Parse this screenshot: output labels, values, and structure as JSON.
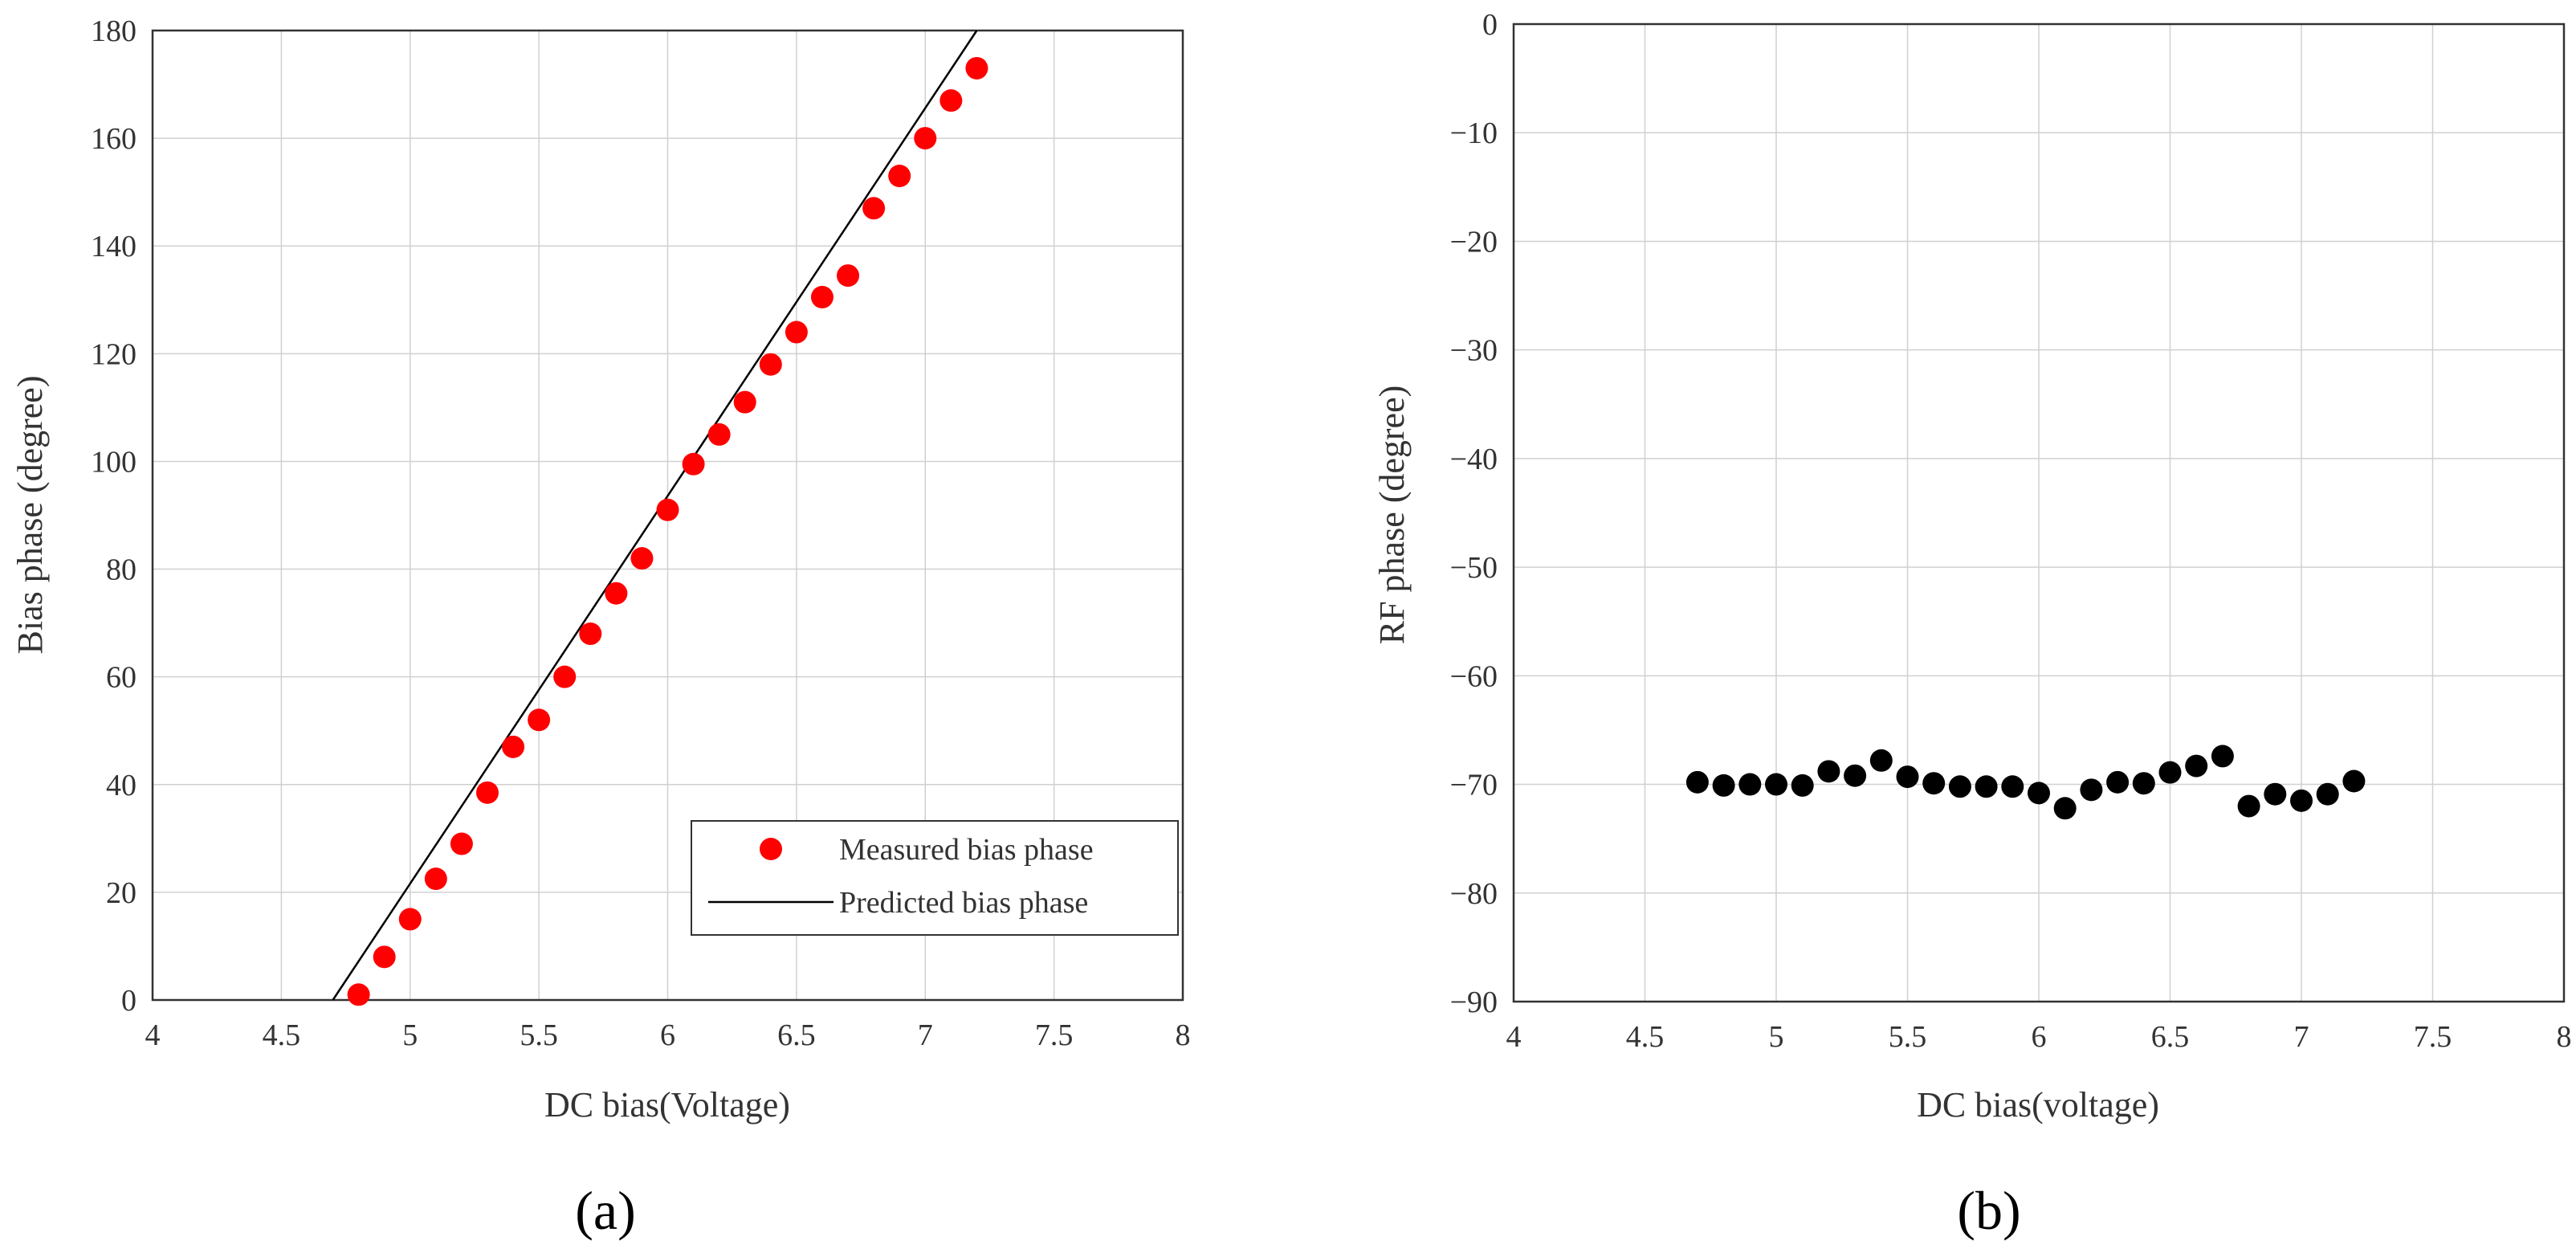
{
  "chart_data": [
    {
      "type": "scatter",
      "panel_label": "(a)",
      "title": "",
      "xlabel": "DC bias(Voltage)",
      "ylabel": "Bias phase (degree)",
      "xlim": [
        4,
        8
      ],
      "ylim": [
        0,
        180
      ],
      "xticks": [
        4,
        4.5,
        5,
        5.5,
        6,
        6.5,
        7,
        7.5,
        8
      ],
      "xtick_labels": [
        "4",
        "4.5",
        "5",
        "5.5",
        "6",
        "6.5",
        "7",
        "7.5",
        "8"
      ],
      "yticks": [
        0,
        20,
        40,
        60,
        80,
        100,
        120,
        140,
        160,
        180
      ],
      "ytick_labels": [
        "0",
        "20",
        "40",
        "60",
        "80",
        "100",
        "120",
        "140",
        "160",
        "180"
      ],
      "grid": true,
      "legend_position": "bottom-right",
      "series": [
        {
          "name": "Measured bias phase",
          "kind": "scatter",
          "color": "#ff0000",
          "x": [
            4.8,
            4.9,
            5.0,
            5.1,
            5.2,
            5.3,
            5.4,
            5.5,
            5.6,
            5.7,
            5.8,
            5.9,
            6.0,
            6.1,
            6.2,
            6.3,
            6.4,
            6.5,
            6.6,
            6.7,
            6.8,
            6.9,
            7.0,
            7.1,
            7.2
          ],
          "y": [
            1,
            8,
            15,
            22.5,
            29,
            38.5,
            47,
            52,
            60,
            68,
            75.5,
            82,
            91,
            99.5,
            105,
            111,
            118,
            124,
            130.5,
            134.5,
            147,
            153,
            160,
            167,
            173
          ]
        },
        {
          "name": "Predicted bias phase",
          "kind": "line",
          "color": "#000000",
          "x": [
            4.7,
            7.2
          ],
          "y": [
            0,
            180
          ]
        }
      ]
    },
    {
      "type": "scatter",
      "panel_label": "(b)",
      "title": "",
      "xlabel": "DC bias(voltage)",
      "ylabel": "RF phase (degree)",
      "xlim": [
        4,
        8
      ],
      "ylim": [
        -90,
        0
      ],
      "xticks": [
        4,
        4.5,
        5,
        5.5,
        6,
        6.5,
        7,
        7.5,
        8
      ],
      "xtick_labels": [
        "4",
        "4.5",
        "5",
        "5.5",
        "6",
        "6.5",
        "7",
        "7.5",
        "8"
      ],
      "yticks": [
        -90,
        -80,
        -70,
        -60,
        -50,
        -40,
        -30,
        -20,
        -10,
        0
      ],
      "ytick_labels": [
        "−90",
        "−80",
        "−70",
        "−60",
        "−50",
        "−40",
        "−30",
        "−20",
        "−10",
        "0"
      ],
      "grid": true,
      "series": [
        {
          "name": "RF phase",
          "kind": "scatter",
          "color": "#000000",
          "x": [
            4.7,
            4.8,
            4.9,
            5.0,
            5.1,
            5.2,
            5.3,
            5.4,
            5.5,
            5.6,
            5.7,
            5.8,
            5.9,
            6.0,
            6.1,
            6.2,
            6.3,
            6.4,
            6.5,
            6.6,
            6.7,
            6.8,
            6.9,
            7.0,
            7.1,
            7.2
          ],
          "y": [
            -69.8,
            -70.1,
            -70.0,
            -70.0,
            -70.1,
            -68.8,
            -69.2,
            -67.8,
            -69.3,
            -69.9,
            -70.2,
            -70.2,
            -70.2,
            -70.8,
            -72.2,
            -70.5,
            -69.8,
            -69.9,
            -68.9,
            -68.3,
            -67.4,
            -72.0,
            -70.9,
            -71.5,
            -70.9,
            -69.7
          ]
        }
      ]
    }
  ]
}
